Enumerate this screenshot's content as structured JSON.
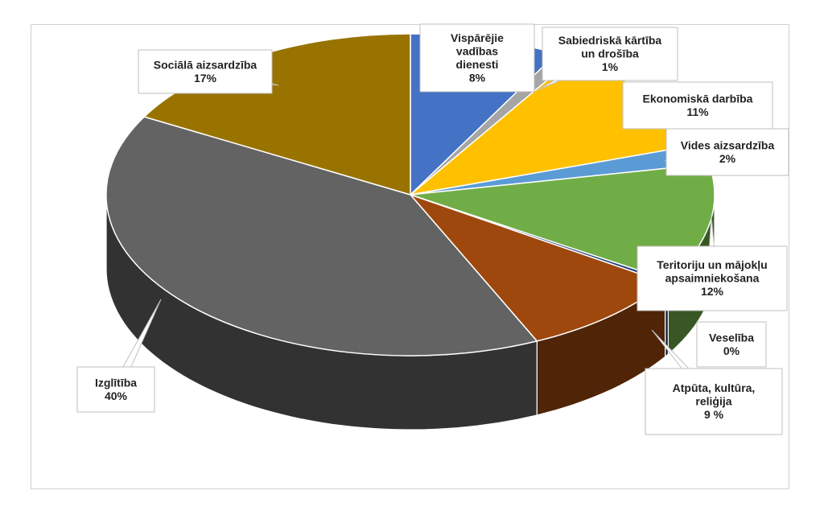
{
  "chart_data": {
    "type": "pie",
    "title": "",
    "slices": [
      {
        "name": "Vispārējie vadības dienesti",
        "label_lines": [
          "Vispārējie",
          "vadības",
          "dienesti"
        ],
        "pct_label": "8%",
        "value": 8,
        "color": "#4472C4"
      },
      {
        "name": "Sabiedriskā kārtība un drošība",
        "label_lines": [
          "Sabiedriskā kārtība",
          "un drošība"
        ],
        "pct_label": "1%",
        "value": 1,
        "color": "#A5A5A5"
      },
      {
        "name": "Ekonomiskā darbība",
        "label_lines": [
          "Ekonomiskā darbība"
        ],
        "pct_label": "11%",
        "value": 11,
        "color": "#FFC000"
      },
      {
        "name": "Vides aizsardzība",
        "label_lines": [
          "Vides aizsardzība"
        ],
        "pct_label": "2%",
        "value": 2,
        "color": "#5B9BD5"
      },
      {
        "name": "Teritoriju un mājokļu apsaimniekošana",
        "label_lines": [
          "Teritoriju un mājokļu",
          "apsaimniekošana"
        ],
        "pct_label": "12%",
        "value": 12,
        "color": "#70AD47"
      },
      {
        "name": "Veselība",
        "label_lines": [
          "Veselība"
        ],
        "pct_label": "0%",
        "value": 0.3,
        "color": "#264478"
      },
      {
        "name": "Atpūta, kultūra, reliģija",
        "label_lines": [
          "Atpūta, kultūra,",
          "reliģija"
        ],
        "pct_label": "9 %",
        "value": 9,
        "color": "#9E480E"
      },
      {
        "name": "Izglītība",
        "label_lines": [
          "Izglītība"
        ],
        "pct_label": "40%",
        "value": 40,
        "color": "#636363"
      },
      {
        "name": "Sociālā aizsardzība",
        "label_lines": [
          "Sociālā aizsardzība"
        ],
        "pct_label": "17%",
        "value": 17,
        "color": "#997300"
      }
    ]
  }
}
